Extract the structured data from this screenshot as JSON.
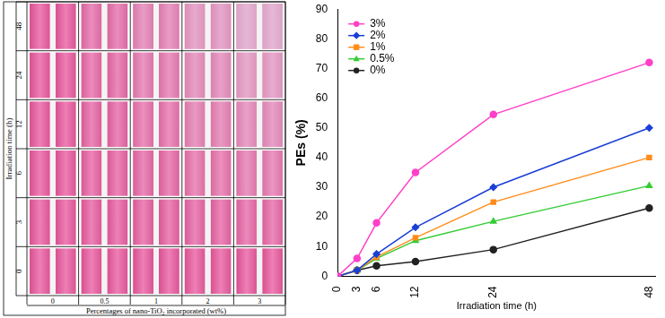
{
  "photo_panel": {
    "y_label": "Irradiation time (h)",
    "row_labels": [
      "48",
      "24",
      "12",
      "6",
      "3",
      "0"
    ],
    "x_label": "Percentages of nano-TiO₂ incorporated (wt%)",
    "column_labels": [
      "0",
      "0.5",
      "1",
      "2",
      "3"
    ]
  },
  "chart_data": {
    "type": "line",
    "x_label": "Irradiation time (h)",
    "y_label": "PEs (%)",
    "x": [
      0,
      3,
      6,
      12,
      24,
      48
    ],
    "xlim": [
      0,
      49
    ],
    "xticks": [
      0,
      3,
      6,
      12,
      24,
      48
    ],
    "ylim": [
      0,
      90
    ],
    "yticks": [
      0,
      10,
      20,
      30,
      40,
      50,
      60,
      70,
      80,
      90
    ],
    "grid": false,
    "legend": "upper left",
    "series": [
      {
        "name": "3%",
        "color": "#ff3fc8",
        "marker": "circle",
        "values": [
          0,
          6,
          18,
          35,
          54.5,
          72
        ]
      },
      {
        "name": "2%",
        "color": "#1a3fd6",
        "marker": "diamond",
        "values": [
          0,
          2,
          7.5,
          16.5,
          30,
          50
        ]
      },
      {
        "name": "1%",
        "color": "#ff8c1a",
        "marker": "square",
        "values": [
          0,
          2,
          6.5,
          13,
          25,
          40
        ]
      },
      {
        "name": "0.5%",
        "color": "#33cc33",
        "marker": "triangle",
        "values": [
          0,
          2,
          6,
          12,
          18.5,
          30.5
        ]
      },
      {
        "name": "0%",
        "color": "#222222",
        "marker": "circle",
        "values": [
          0,
          2,
          3.5,
          5,
          9,
          23
        ]
      }
    ]
  }
}
